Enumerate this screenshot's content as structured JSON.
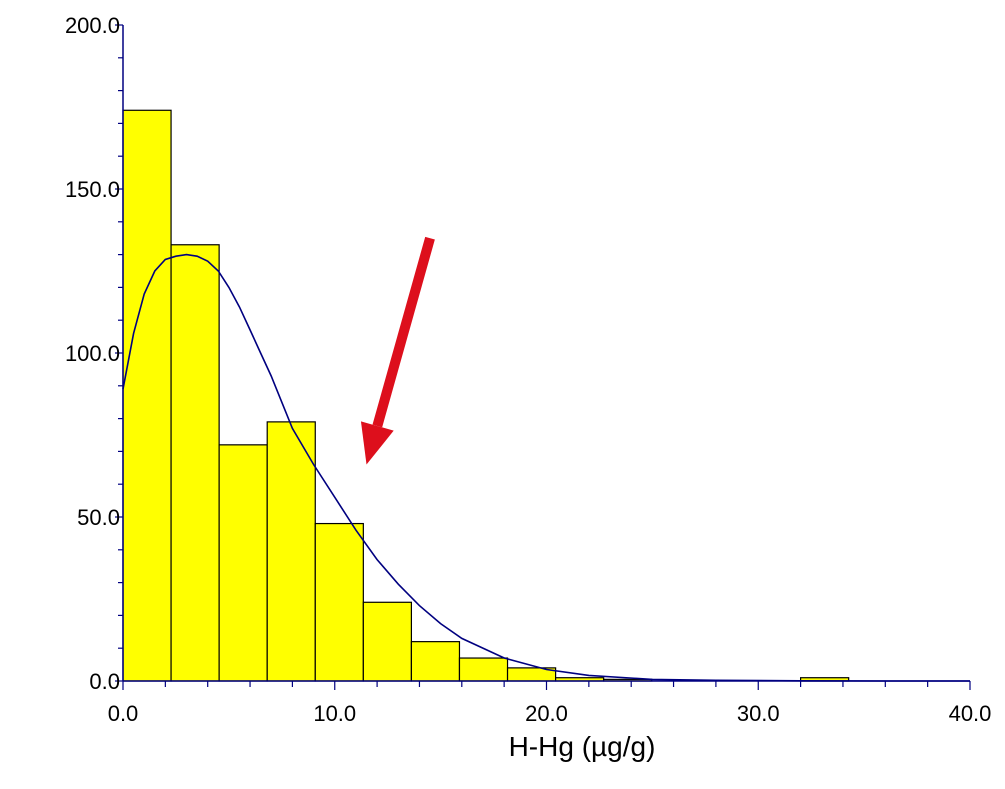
{
  "chart_data": {
    "type": "bar",
    "subtype": "histogram",
    "title": "",
    "xlabel": "H-Hg (µg/g)",
    "ylabel": "",
    "xlim": [
      0,
      40
    ],
    "ylim": [
      0,
      200
    ],
    "x_ticks": [
      "0.0",
      "10.0",
      "20.0",
      "30.0",
      "40.0"
    ],
    "y_ticks": [
      "0.0",
      "50.0",
      "100.0",
      "150.0",
      "200.0"
    ],
    "grid": false,
    "bins": [
      {
        "start": 0.0,
        "end": 2.27,
        "count": 174
      },
      {
        "start": 2.27,
        "end": 4.54,
        "count": 133
      },
      {
        "start": 4.54,
        "end": 6.81,
        "count": 72
      },
      {
        "start": 6.81,
        "end": 9.08,
        "count": 79
      },
      {
        "start": 9.08,
        "end": 11.35,
        "count": 48
      },
      {
        "start": 11.35,
        "end": 13.62,
        "count": 24
      },
      {
        "start": 13.62,
        "end": 15.89,
        "count": 12
      },
      {
        "start": 15.89,
        "end": 18.16,
        "count": 7
      },
      {
        "start": 18.16,
        "end": 20.43,
        "count": 4
      },
      {
        "start": 20.43,
        "end": 22.7,
        "count": 1
      },
      {
        "start": 22.7,
        "end": 24.97,
        "count": 0.5
      },
      {
        "start": 32.0,
        "end": 34.27,
        "count": 1
      }
    ],
    "fit_curve": {
      "x": [
        0,
        0.5,
        1,
        1.5,
        2,
        2.5,
        3,
        3.5,
        4,
        4.5,
        5,
        5.5,
        6,
        6.5,
        7,
        7.5,
        8,
        9,
        10,
        11,
        12,
        13,
        14,
        15,
        16,
        18,
        20,
        22,
        25,
        28,
        32,
        36,
        40
      ],
      "y": [
        89,
        106,
        118,
        125,
        128.5,
        129.5,
        130,
        129.5,
        128,
        125,
        120,
        114,
        107,
        100,
        93,
        85,
        77,
        66,
        56,
        46,
        37,
        29.5,
        23,
        17.5,
        13,
        7,
        3.5,
        1.7,
        0.5,
        0.2,
        0.05,
        0.01,
        0
      ]
    },
    "annotation": {
      "type": "arrow",
      "color": "#dd0f1c",
      "tail": [
        14.5,
        135
      ],
      "head": [
        11.5,
        66
      ]
    },
    "colors": {
      "bar_fill": "#ffff00",
      "bar_edge": "#000000",
      "curve": "#000080",
      "axis": "#000080"
    }
  }
}
